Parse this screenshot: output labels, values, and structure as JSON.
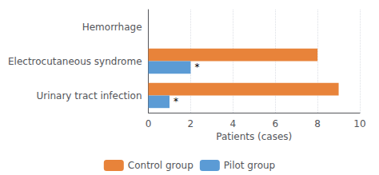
{
  "chart_data": {
    "type": "bar",
    "orientation": "horizontal",
    "categories": [
      "Urinary tract infection",
      "Electrocutaneous syndrome",
      "Hemorrhage"
    ],
    "series": [
      {
        "name": "Control group",
        "color": "#E8833A",
        "values": [
          9,
          8,
          0
        ]
      },
      {
        "name": "Pilot group",
        "color": "#5B9BD5",
        "values": [
          1,
          2,
          0
        ]
      }
    ],
    "xlabel": "Patients (cases)",
    "xlim": [
      0,
      10
    ],
    "xticks": [
      0,
      2,
      4,
      6,
      8,
      10
    ],
    "grid": true,
    "legend": "bottom",
    "annotations": [
      {
        "text": "*",
        "category": "Electrocutaneous syndrome",
        "series": "Pilot group"
      },
      {
        "text": "*",
        "category": "Urinary tract infection",
        "series": "Pilot group"
      }
    ]
  }
}
